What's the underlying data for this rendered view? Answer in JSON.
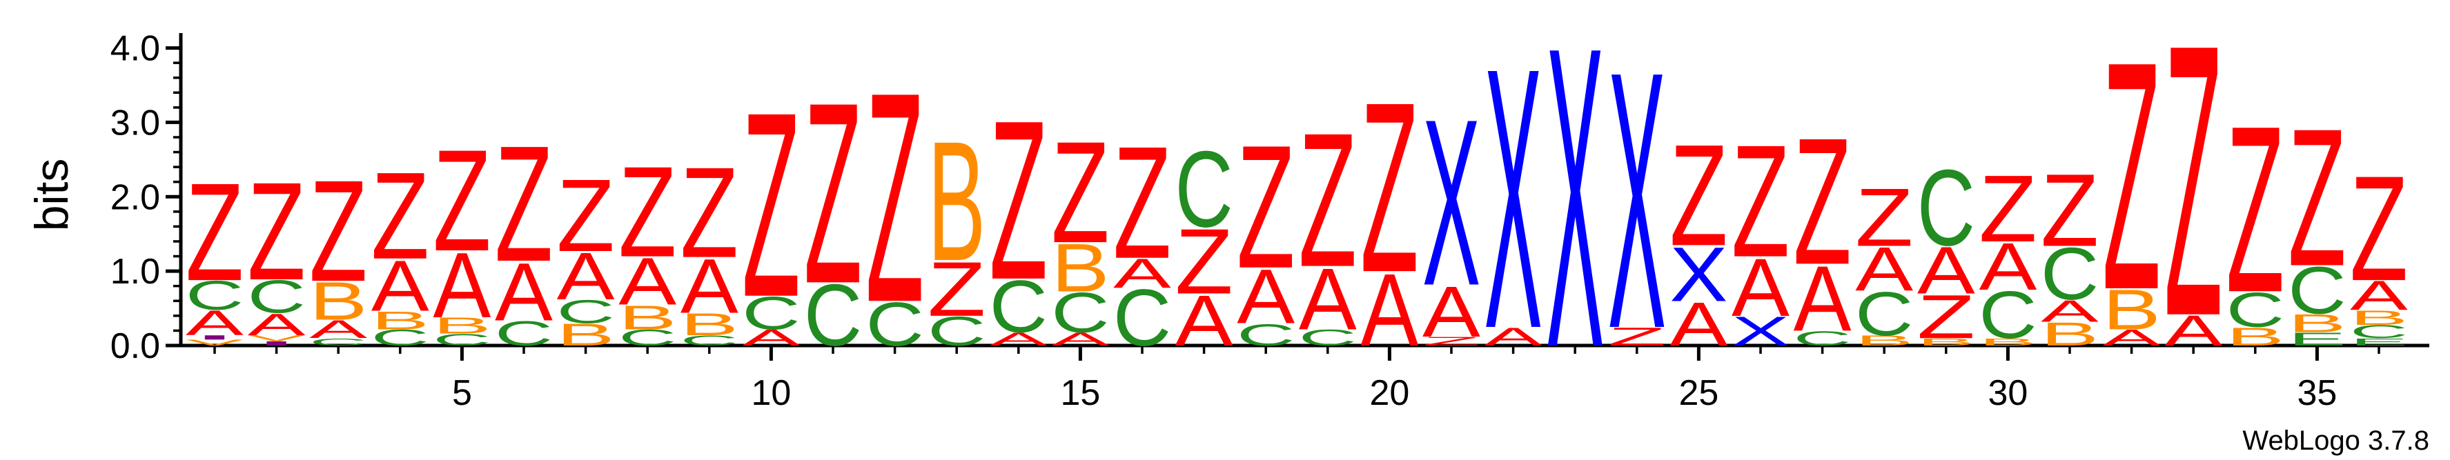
{
  "chart_data": {
    "type": "sequence-logo",
    "ylabel": "bits",
    "ylim": [
      0,
      4.2
    ],
    "yticks": [
      "0.0",
      "1.0",
      "2.0",
      "3.0",
      "4.0"
    ],
    "xticks": [
      "5",
      "10",
      "15",
      "20",
      "25",
      "30",
      "35"
    ],
    "footer": "WebLogo 3.7.8",
    "colors": {
      "Z": "#ff0000",
      "A": "#ff0000",
      "X": "#0000ff",
      "B": "#ff8c00",
      "C": "#228b22",
      "E": "#228b22",
      "V": "#ff8c00",
      "I": "#800080",
      "F": "#ff0000"
    },
    "positions": [
      {
        "pos": 1,
        "stack": [
          [
            "V",
            0.08
          ],
          [
            "I",
            0.06
          ],
          [
            "A",
            0.34
          ],
          [
            "C",
            0.4
          ],
          [
            "Z",
            1.35
          ]
        ]
      },
      {
        "pos": 2,
        "stack": [
          [
            "I",
            0.06
          ],
          [
            "V",
            0.08
          ],
          [
            "A",
            0.3
          ],
          [
            "C",
            0.45
          ],
          [
            "Z",
            1.35
          ]
        ]
      },
      {
        "pos": 3,
        "stack": [
          [
            "C",
            0.1
          ],
          [
            "A",
            0.25
          ],
          [
            "B",
            0.52
          ],
          [
            "Z",
            1.4
          ]
        ]
      },
      {
        "pos": 4,
        "stack": [
          [
            "C",
            0.22
          ],
          [
            "B",
            0.25
          ],
          [
            "A",
            0.7
          ],
          [
            "Z",
            1.2
          ]
        ]
      },
      {
        "pos": 5,
        "stack": [
          [
            "C",
            0.16
          ],
          [
            "B",
            0.22
          ],
          [
            "A",
            0.9
          ],
          [
            "Z",
            1.4
          ]
        ]
      },
      {
        "pos": 6,
        "stack": [
          [
            "C",
            0.34
          ],
          [
            "A",
            0.8
          ],
          [
            "Z",
            1.6
          ]
        ]
      },
      {
        "pos": 7,
        "stack": [
          [
            "B",
            0.3
          ],
          [
            "C",
            0.32
          ],
          [
            "A",
            0.65
          ],
          [
            "Z",
            1.0
          ]
        ]
      },
      {
        "pos": 8,
        "stack": [
          [
            "C",
            0.22
          ],
          [
            "B",
            0.33
          ],
          [
            "A",
            0.65
          ],
          [
            "Z",
            1.25
          ]
        ]
      },
      {
        "pos": 9,
        "stack": [
          [
            "C",
            0.14
          ],
          [
            "B",
            0.3
          ],
          [
            "A",
            0.75
          ],
          [
            "Z",
            1.25
          ]
        ]
      },
      {
        "pos": 10,
        "stack": [
          [
            "A",
            0.22
          ],
          [
            "C",
            0.45
          ],
          [
            "Z",
            2.55
          ]
        ]
      },
      {
        "pos": 11,
        "stack": [
          [
            "C",
            0.85
          ],
          [
            "Z",
            2.5
          ]
        ]
      },
      {
        "pos": 12,
        "stack": [
          [
            "C",
            0.6
          ],
          [
            "Z",
            2.9
          ]
        ]
      },
      {
        "pos": 13,
        "stack": [
          [
            "C",
            0.4
          ],
          [
            "Z",
            0.75
          ],
          [
            "B",
            1.65
          ]
        ]
      },
      {
        "pos": 14,
        "stack": [
          [
            "A",
            0.18
          ],
          [
            "C",
            0.72
          ],
          [
            "Z",
            2.2
          ]
        ]
      },
      {
        "pos": 15,
        "stack": [
          [
            "A",
            0.18
          ],
          [
            "C",
            0.55
          ],
          [
            "B",
            0.66
          ],
          [
            "Z",
            1.4
          ]
        ]
      },
      {
        "pos": 16,
        "stack": [
          [
            "C",
            0.78
          ],
          [
            "A",
            0.4
          ],
          [
            "Z",
            1.55
          ]
        ]
      },
      {
        "pos": 17,
        "stack": [
          [
            "A",
            0.7
          ],
          [
            "Z",
            0.9
          ],
          [
            "C",
            1.05
          ]
        ]
      },
      {
        "pos": 18,
        "stack": [
          [
            "C",
            0.3
          ],
          [
            "A",
            0.75
          ],
          [
            "Z",
            1.7
          ]
        ]
      },
      {
        "pos": 19,
        "stack": [
          [
            "C",
            0.22
          ],
          [
            "A",
            0.85
          ],
          [
            "Z",
            1.85
          ]
        ]
      },
      {
        "pos": 20,
        "stack": [
          [
            "A",
            1.0
          ],
          [
            "Z",
            2.35
          ]
        ]
      },
      {
        "pos": 21,
        "stack": [
          [
            "Z",
            0.12
          ],
          [
            "A",
            0.7
          ],
          [
            "X",
            2.3
          ]
        ]
      },
      {
        "pos": 22,
        "stack": [
          [
            "A",
            0.25
          ],
          [
            "X",
            3.6
          ]
        ]
      },
      {
        "pos": 23,
        "stack": [
          [
            "X",
            4.15
          ]
        ]
      },
      {
        "pos": 24,
        "stack": [
          [
            "Z",
            0.25
          ],
          [
            "X",
            3.55
          ]
        ]
      },
      {
        "pos": 25,
        "stack": [
          [
            "A",
            0.6
          ],
          [
            "X",
            0.75
          ],
          [
            "Z",
            1.4
          ]
        ]
      },
      {
        "pos": 26,
        "stack": [
          [
            "X",
            0.4
          ],
          [
            "A",
            0.8
          ],
          [
            "Z",
            1.55
          ]
        ]
      },
      {
        "pos": 27,
        "stack": [
          [
            "C",
            0.2
          ],
          [
            "A",
            0.9
          ],
          [
            "Z",
            1.75
          ]
        ]
      },
      {
        "pos": 28,
        "stack": [
          [
            "B",
            0.14
          ],
          [
            "C",
            0.6
          ],
          [
            "A",
            0.6
          ],
          [
            "Z",
            0.8
          ]
        ]
      },
      {
        "pos": 29,
        "stack": [
          [
            "B",
            0.1
          ],
          [
            "Z",
            0.6
          ],
          [
            "A",
            0.65
          ],
          [
            "C",
            1.05
          ]
        ]
      },
      {
        "pos": 30,
        "stack": [
          [
            "B",
            0.1
          ],
          [
            "C",
            0.65
          ],
          [
            "A",
            0.65
          ],
          [
            "Z",
            0.92
          ]
        ]
      },
      {
        "pos": 31,
        "stack": [
          [
            "B",
            0.32
          ],
          [
            "A",
            0.3
          ],
          [
            "C",
            0.72
          ],
          [
            "Z",
            1.0
          ]
        ]
      },
      {
        "pos": 32,
        "stack": [
          [
            "A",
            0.22
          ],
          [
            "B",
            0.55
          ],
          [
            "Z",
            3.15
          ]
        ]
      },
      {
        "pos": 33,
        "stack": [
          [
            "A",
            0.42
          ],
          [
            "Z",
            3.75
          ]
        ]
      },
      {
        "pos": 34,
        "stack": [
          [
            "B",
            0.25
          ],
          [
            "C",
            0.48
          ],
          [
            "Z",
            2.3
          ]
        ]
      },
      {
        "pos": 35,
        "stack": [
          [
            "E",
            0.18
          ],
          [
            "B",
            0.25
          ],
          [
            "C",
            0.65
          ],
          [
            "Z",
            1.9
          ]
        ]
      },
      {
        "pos": 36,
        "stack": [
          [
            "E",
            0.1
          ],
          [
            "C",
            0.18
          ],
          [
            "B",
            0.2
          ],
          [
            "A",
            0.4
          ],
          [
            "Z",
            1.45
          ]
        ]
      }
    ]
  }
}
